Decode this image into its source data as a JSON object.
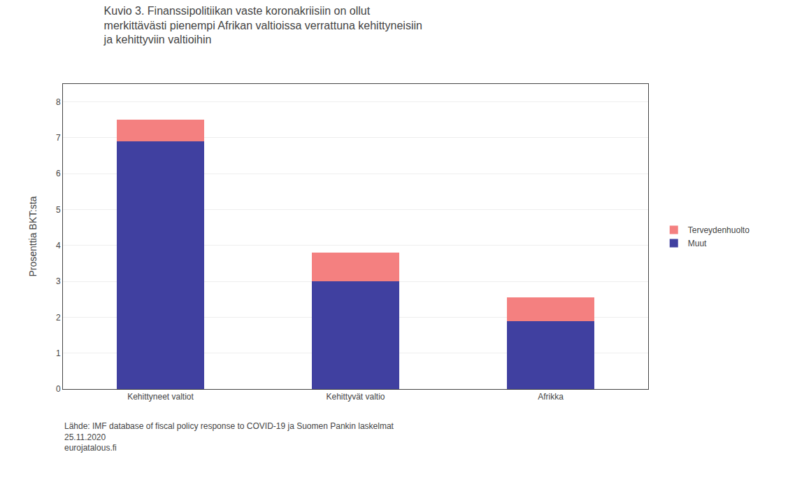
{
  "chart_data": {
    "type": "bar",
    "stacked": true,
    "title": "Kuvio 3. Finanssipolitiikan vaste koronakriisiin on ollut\nmerkittävästi pienempi Afrikan valtioissa verrattuna kehittyneisiin\nja kehittyviin valtioihin",
    "y_label": "Prosenttia BKT:sta",
    "categories": [
      "Kehittyneet valtiot",
      "Kehittyvät valtio",
      "Afrikka"
    ],
    "series": [
      {
        "name": "Muut",
        "color": "#4040a0",
        "values": [
          6.9,
          3.0,
          1.9
        ]
      },
      {
        "name": "Terveydenhuolto",
        "color": "#f48080",
        "values": [
          0.6,
          0.8,
          0.65
        ]
      }
    ],
    "ylim": [
      0,
      8.5
    ],
    "yticks": [
      0,
      1,
      2,
      3,
      4,
      5,
      6,
      7,
      8
    ],
    "grid": true,
    "legend": "right",
    "annotations": [
      "Lähde: IMF database of fiscal policy response to COVID-19 ja Suomen Pankin laskelmat",
      "25.11.2020",
      "eurojatalous.fi"
    ]
  }
}
